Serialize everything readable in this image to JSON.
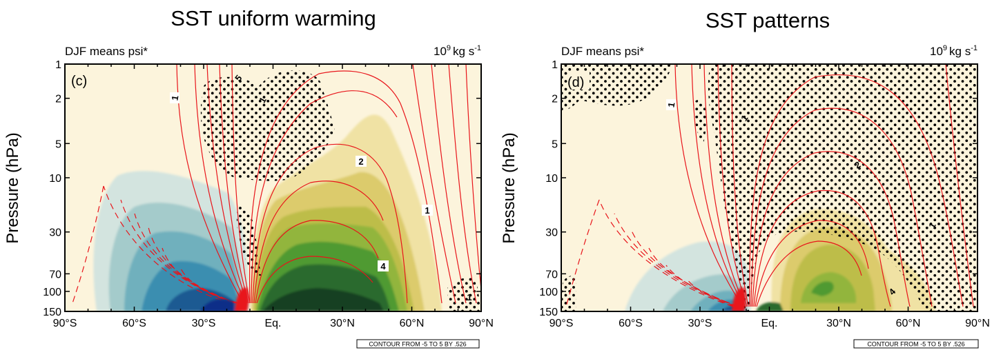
{
  "chart_data": [
    {
      "type": "contour",
      "panel_label": "(c)",
      "title": "SST uniform warming",
      "subtitle_left": "DJF means psi*",
      "subtitle_right_base": "10",
      "subtitle_right_exp": "9",
      "subtitle_right_unit": "kg s",
      "subtitle_right_unit_exp": "-1",
      "ylabel": "Pressure (hPa)",
      "xlabel": "",
      "x_ticks": [
        "90°S",
        "60°S",
        "30°S",
        "Eq.",
        "30°N",
        "60°N",
        "90°N"
      ],
      "x_tick_values": [
        -90,
        -60,
        -30,
        0,
        30,
        60,
        90
      ],
      "y_ticks": [
        "1",
        "2",
        "5",
        "10",
        "30",
        "70",
        "100",
        "150"
      ],
      "y_tick_values": [
        1,
        2,
        5,
        10,
        30,
        70,
        100,
        150
      ],
      "y_scale": "log",
      "xlim": [
        -90,
        90
      ],
      "ylim": [
        150,
        1
      ],
      "contour_labels": [
        "1",
        "2",
        "1",
        "4",
        "1",
        "5",
        "1"
      ],
      "contour_note": "CONTOUR FROM -5 TO 5 BY .526",
      "shading": "positive anomalies in yellow-green, negative anomalies in blue",
      "contours": "red lines, dashed for negative",
      "stippling": "black dots mark significance"
    },
    {
      "type": "contour",
      "panel_label": "(d)",
      "title": "SST patterns",
      "subtitle_left": "DJF means psi*",
      "subtitle_right_base": "10",
      "subtitle_right_exp": "9",
      "subtitle_right_unit": "kg s",
      "subtitle_right_unit_exp": "-1",
      "ylabel": "Pressure (hPa)",
      "xlabel": "",
      "x_ticks": [
        "90°S",
        "60°S",
        "30°S",
        "Eq.",
        "30°N",
        "60°N",
        "90°N"
      ],
      "x_tick_values": [
        -90,
        -60,
        -30,
        0,
        30,
        60,
        90
      ],
      "y_ticks": [
        "1",
        "2",
        "5",
        "10",
        "30",
        "70",
        "100",
        "150"
      ],
      "y_tick_values": [
        1,
        2,
        5,
        10,
        30,
        70,
        100,
        150
      ],
      "y_scale": "log",
      "xlim": [
        -90,
        90
      ],
      "ylim": [
        150,
        1
      ],
      "contour_labels": [
        "1",
        "2",
        "1",
        "4",
        "1"
      ],
      "contour_note": "CONTOUR FROM -5 TO 5 BY .526",
      "shading": "positive anomalies in yellow-green, negative anomalies in blue",
      "contours": "red lines, dashed for negative",
      "stippling": "black dots mark significance"
    }
  ],
  "colors": {
    "background": "#fcf4dc",
    "contour": "#e8141a",
    "neg_shades": [
      "#d3e4df",
      "#a4cbcb",
      "#6fb0bd",
      "#3a8eb0",
      "#1a5a92"
    ],
    "pos_shades": [
      "#f0e2a4",
      "#dccb6c",
      "#bdbd4a",
      "#92b53d",
      "#4f9a33",
      "#2a6b2f",
      "#163f20"
    ]
  }
}
